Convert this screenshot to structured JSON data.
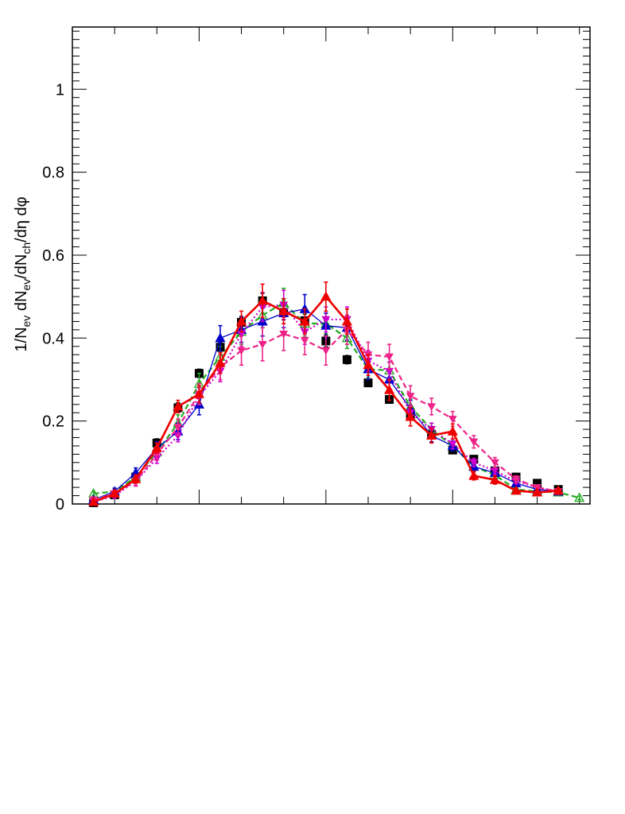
{
  "chart_data": {
    "type": "line",
    "title": "",
    "ylabel_parts": [
      "1/N",
      "ev",
      " dN",
      "ev",
      "/dN",
      "ch",
      "/dη dφ"
    ],
    "ylim": [
      0,
      1.15
    ],
    "xlim": [
      0,
      24.5
    ],
    "y_tick_labels": [
      "0",
      "0.2",
      "0.4",
      "0.6",
      "0.8",
      "1"
    ],
    "y_tick_values": [
      0,
      0.2,
      0.4,
      0.6,
      0.8,
      1.0
    ],
    "x_tick_labels": [],
    "grid": false,
    "legend": "none",
    "x": [
      1,
      2,
      3,
      4,
      5,
      6,
      7,
      8,
      9,
      10,
      11,
      12,
      13,
      14,
      15,
      16,
      17,
      18,
      19,
      20,
      21,
      22,
      23,
      24
    ],
    "series": [
      {
        "color": "#000000",
        "marker": "square",
        "line": "none",
        "values": [
          0.003,
          0.022,
          0.065,
          0.147,
          0.232,
          0.315,
          0.378,
          0.438,
          0.49,
          0.462,
          0.442,
          0.393,
          0.348,
          0.292,
          0.252,
          0.215,
          0.168,
          0.13,
          0.108,
          0.08,
          0.065,
          0.05,
          0.035,
          null
        ],
        "errors": [
          0.003,
          0.006,
          0.008,
          0.01,
          0.012,
          0.01,
          0.012,
          0.014,
          0.018,
          0.018,
          0.016,
          0.014,
          0.01,
          0.008,
          0.008,
          0.006,
          0.005,
          0.005,
          0.004,
          0.003,
          0.003,
          0.003,
          0.002,
          null
        ]
      },
      {
        "color": "#22aa22",
        "marker": "triangle-up-open",
        "line": "dashed",
        "values": [
          0.025,
          0.03,
          0.065,
          0.125,
          0.195,
          0.29,
          0.355,
          0.415,
          0.455,
          0.485,
          0.435,
          0.435,
          0.4,
          0.325,
          0.322,
          0.235,
          0.18,
          0.14,
          0.09,
          0.07,
          0.035,
          0.03,
          0.028,
          0.015
        ],
        "errors": [
          0.005,
          0.008,
          0.01,
          0.012,
          0.02,
          0.025,
          0.025,
          0.03,
          0.03,
          0.035,
          0.03,
          0.025,
          0.025,
          0.02,
          0.02,
          0.018,
          0.015,
          0.012,
          0.01,
          0.008,
          0.006,
          0.006,
          0.005,
          0.004
        ]
      },
      {
        "color": "#0000cc",
        "marker": "triangle-up",
        "line": "solid",
        "values": [
          0.01,
          0.03,
          0.075,
          0.135,
          0.175,
          0.24,
          0.4,
          0.42,
          0.44,
          0.46,
          0.47,
          0.43,
          0.425,
          0.325,
          0.3,
          0.23,
          0.165,
          0.14,
          0.09,
          0.075,
          0.05,
          0.035,
          0.03,
          null
        ],
        "errors": [
          0.005,
          0.008,
          0.012,
          0.015,
          0.02,
          0.025,
          0.03,
          0.03,
          0.035,
          0.035,
          0.035,
          0.03,
          0.03,
          0.025,
          0.022,
          0.02,
          0.015,
          0.012,
          0.01,
          0.008,
          0.006,
          0.005,
          0.004,
          null
        ]
      },
      {
        "color": "#cc00cc",
        "marker": "triangle-down",
        "line": "dotted",
        "values": [
          0.005,
          0.02,
          0.055,
          0.11,
          0.165,
          0.26,
          0.32,
          0.41,
          0.475,
          0.48,
          0.415,
          0.445,
          0.445,
          0.345,
          0.32,
          0.22,
          0.18,
          0.145,
          0.1,
          0.08,
          0.055,
          0.04,
          0.03,
          null
        ],
        "errors": [
          0.003,
          0.006,
          0.01,
          0.012,
          0.015,
          0.02,
          0.025,
          0.03,
          0.035,
          0.035,
          0.03,
          0.03,
          0.03,
          0.025,
          0.022,
          0.018,
          0.015,
          0.012,
          0.01,
          0.008,
          0.006,
          0.005,
          0.004,
          null
        ]
      },
      {
        "color": "#ee2288",
        "marker": "triangle-down",
        "line": "dashed",
        "values": [
          0.01,
          0.025,
          0.055,
          0.12,
          0.185,
          0.265,
          0.33,
          0.37,
          0.385,
          0.41,
          0.395,
          0.37,
          0.42,
          0.36,
          0.355,
          0.26,
          0.235,
          0.205,
          0.15,
          0.1,
          0.06,
          0.04,
          0.03,
          null
        ],
        "errors": [
          0.004,
          0.008,
          0.012,
          0.015,
          0.02,
          0.025,
          0.03,
          0.035,
          0.04,
          0.04,
          0.035,
          0.035,
          0.035,
          0.03,
          0.03,
          0.025,
          0.02,
          0.018,
          0.015,
          0.012,
          0.008,
          0.006,
          0.005,
          null
        ]
      },
      {
        "color": "#ee0000",
        "marker": "triangle-up",
        "line": "solid-thick",
        "values": [
          0.005,
          0.025,
          0.06,
          0.135,
          0.235,
          0.265,
          0.34,
          0.44,
          0.49,
          0.465,
          0.44,
          0.5,
          0.44,
          0.335,
          0.275,
          0.21,
          0.165,
          0.175,
          0.068,
          0.058,
          0.032,
          0.028,
          0.032,
          null
        ],
        "errors": [
          0.003,
          0.006,
          0.01,
          0.012,
          0.015,
          0.02,
          0.025,
          0.025,
          0.04,
          0.03,
          0.03,
          0.035,
          0.03,
          0.025,
          0.025,
          0.022,
          0.018,
          0.018,
          0.01,
          0.01,
          0.006,
          0.005,
          0.005,
          null
        ]
      }
    ]
  }
}
